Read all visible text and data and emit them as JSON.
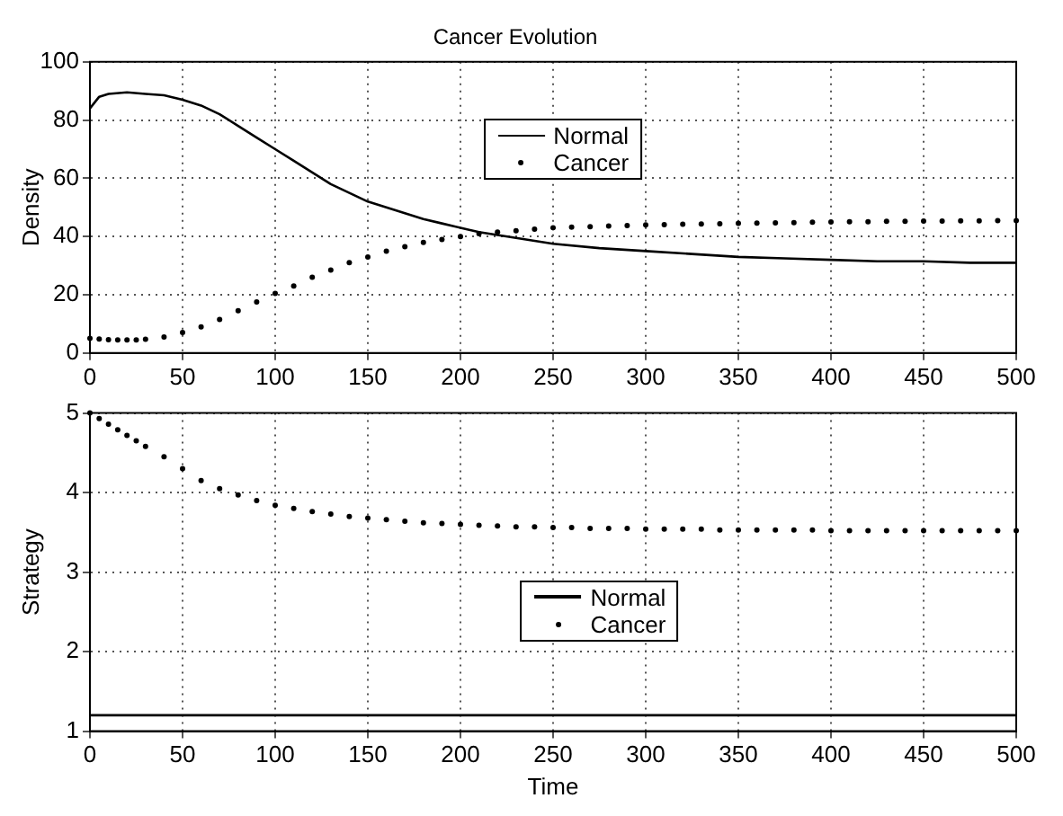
{
  "chart_data": [
    {
      "type": "line",
      "title": "Cancer Evolution",
      "ylabel": "Density",
      "xlim": [
        0,
        500
      ],
      "xticks": [
        0,
        50,
        100,
        150,
        200,
        250,
        300,
        350,
        400,
        450,
        500
      ],
      "ylim": [
        0,
        100
      ],
      "yticks": [
        0,
        20,
        40,
        60,
        80,
        100
      ],
      "grid": true,
      "legend": "top",
      "series": [
        {
          "name": "Normal",
          "type": "line",
          "color": "#000000",
          "x": [
            0,
            5,
            10,
            20,
            30,
            40,
            50,
            60,
            70,
            80,
            90,
            100,
            110,
            120,
            130,
            140,
            150,
            160,
            170,
            180,
            190,
            200,
            210,
            220,
            230,
            250,
            275,
            300,
            325,
            350,
            375,
            400,
            425,
            450,
            475,
            500
          ],
          "values": [
            84,
            88,
            89,
            89.5,
            89,
            88.5,
            87,
            85,
            82,
            78,
            74,
            70,
            66,
            62,
            58,
            55,
            52,
            50,
            48,
            46,
            44.5,
            43,
            41.5,
            40.5,
            39.5,
            37.5,
            36,
            35,
            34,
            33,
            32.5,
            32,
            31.5,
            31.5,
            31,
            31
          ]
        },
        {
          "name": "Cancer",
          "type": "scatter",
          "marker": "circle",
          "color": "#000000",
          "x": [
            0,
            5,
            10,
            15,
            20,
            25,
            30,
            40,
            50,
            60,
            70,
            80,
            90,
            100,
            110,
            120,
            130,
            140,
            150,
            160,
            170,
            180,
            190,
            200,
            210,
            220,
            230,
            240,
            250,
            260,
            270,
            280,
            290,
            300,
            310,
            320,
            330,
            340,
            350,
            360,
            370,
            380,
            390,
            400,
            410,
            420,
            430,
            440,
            450,
            460,
            470,
            480,
            490,
            500
          ],
          "values": [
            5,
            4.8,
            4.6,
            4.5,
            4.5,
            4.5,
            4.7,
            5.5,
            7,
            9,
            11.5,
            14.5,
            17.5,
            20.5,
            23,
            26,
            28.5,
            31,
            33,
            35,
            36.5,
            38,
            39,
            40,
            41,
            41.5,
            42,
            42.5,
            43,
            43.2,
            43.4,
            43.6,
            43.8,
            44,
            44.1,
            44.2,
            44.3,
            44.4,
            44.5,
            44.6,
            44.7,
            44.8,
            44.9,
            45,
            45.1,
            45.1,
            45.2,
            45.2,
            45.3,
            45.3,
            45.4,
            45.4,
            45.5,
            45.5
          ]
        }
      ]
    },
    {
      "type": "line",
      "xlabel": "Time",
      "ylabel": "Strategy",
      "xlim": [
        0,
        500
      ],
      "xticks": [
        0,
        50,
        100,
        150,
        200,
        250,
        300,
        350,
        400,
        450,
        500
      ],
      "ylim": [
        1,
        5
      ],
      "yticks": [
        1,
        2,
        3,
        4,
        5
      ],
      "grid": true,
      "legend": "center",
      "series": [
        {
          "name": "Normal",
          "type": "line",
          "color": "#000000",
          "x": [
            0,
            500
          ],
          "values": [
            1.2,
            1.2
          ]
        },
        {
          "name": "Cancer",
          "type": "scatter",
          "marker": "circle",
          "color": "#000000",
          "x": [
            0,
            5,
            10,
            15,
            20,
            25,
            30,
            40,
            50,
            60,
            70,
            80,
            90,
            100,
            110,
            120,
            130,
            140,
            150,
            160,
            170,
            180,
            190,
            200,
            210,
            220,
            230,
            240,
            250,
            260,
            270,
            280,
            290,
            300,
            310,
            320,
            330,
            340,
            350,
            360,
            370,
            380,
            390,
            400,
            410,
            420,
            430,
            440,
            450,
            460,
            470,
            480,
            490,
            500
          ],
          "values": [
            5,
            4.93,
            4.86,
            4.79,
            4.72,
            4.65,
            4.58,
            4.45,
            4.3,
            4.15,
            4.05,
            3.97,
            3.9,
            3.84,
            3.8,
            3.76,
            3.73,
            3.7,
            3.68,
            3.66,
            3.64,
            3.62,
            3.61,
            3.6,
            3.59,
            3.58,
            3.57,
            3.57,
            3.56,
            3.56,
            3.55,
            3.55,
            3.55,
            3.54,
            3.54,
            3.54,
            3.54,
            3.53,
            3.53,
            3.53,
            3.53,
            3.53,
            3.53,
            3.52,
            3.52,
            3.52,
            3.52,
            3.52,
            3.52,
            3.52,
            3.52,
            3.52,
            3.52,
            3.52
          ]
        }
      ]
    }
  ]
}
